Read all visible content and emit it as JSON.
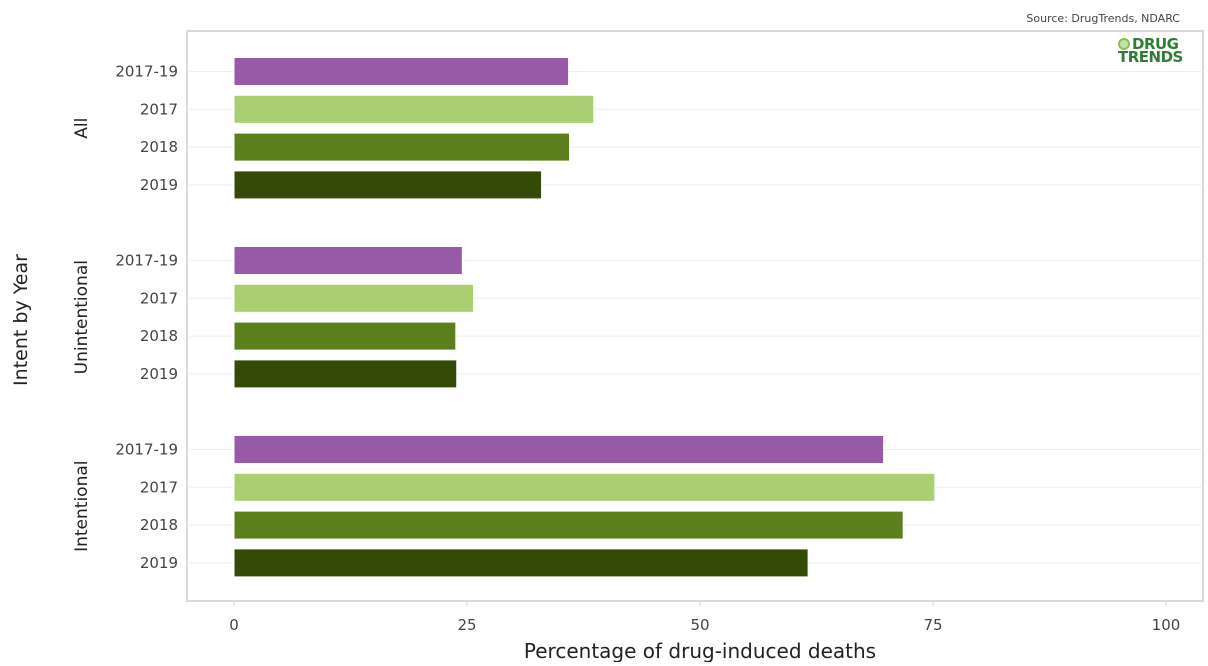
{
  "source": "Source: DrugTrends, NDARC",
  "logo": {
    "line1": "DRUG",
    "line2": "TRENDS"
  },
  "colors": {
    "2017-19": "#965aa6",
    "2017": "#a9cf70",
    "2018": "#5a7f1c",
    "2019": "#344b08",
    "axis": "#d9d9d9",
    "grid": "#eeeeee",
    "text": "#444444"
  },
  "chart_data": {
    "type": "bar",
    "orientation": "horizontal",
    "xlabel": "Percentage of drug-induced deaths",
    "ylabel": "Intent by Year",
    "xlim": [
      0,
      100
    ],
    "xticks": [
      0,
      25,
      50,
      75,
      100
    ],
    "series_order": [
      "2017-19",
      "2017",
      "2018",
      "2019"
    ],
    "groups": [
      {
        "name": "All",
        "bars": [
          {
            "label": "2017-19",
            "value": 35.9
          },
          {
            "label": "2017",
            "value": 38.6
          },
          {
            "label": "2018",
            "value": 36.0
          },
          {
            "label": "2019",
            "value": 33.0
          }
        ]
      },
      {
        "name": "Unintentional",
        "bars": [
          {
            "label": "2017-19",
            "value": 24.5
          },
          {
            "label": "2017",
            "value": 25.7
          },
          {
            "label": "2018",
            "value": 23.8
          },
          {
            "label": "2019",
            "value": 23.9
          }
        ]
      },
      {
        "name": "Intentional",
        "bars": [
          {
            "label": "2017-19",
            "value": 69.7
          },
          {
            "label": "2017",
            "value": 75.2
          },
          {
            "label": "2018",
            "value": 71.8
          },
          {
            "label": "2019",
            "value": 61.6
          }
        ]
      }
    ]
  }
}
